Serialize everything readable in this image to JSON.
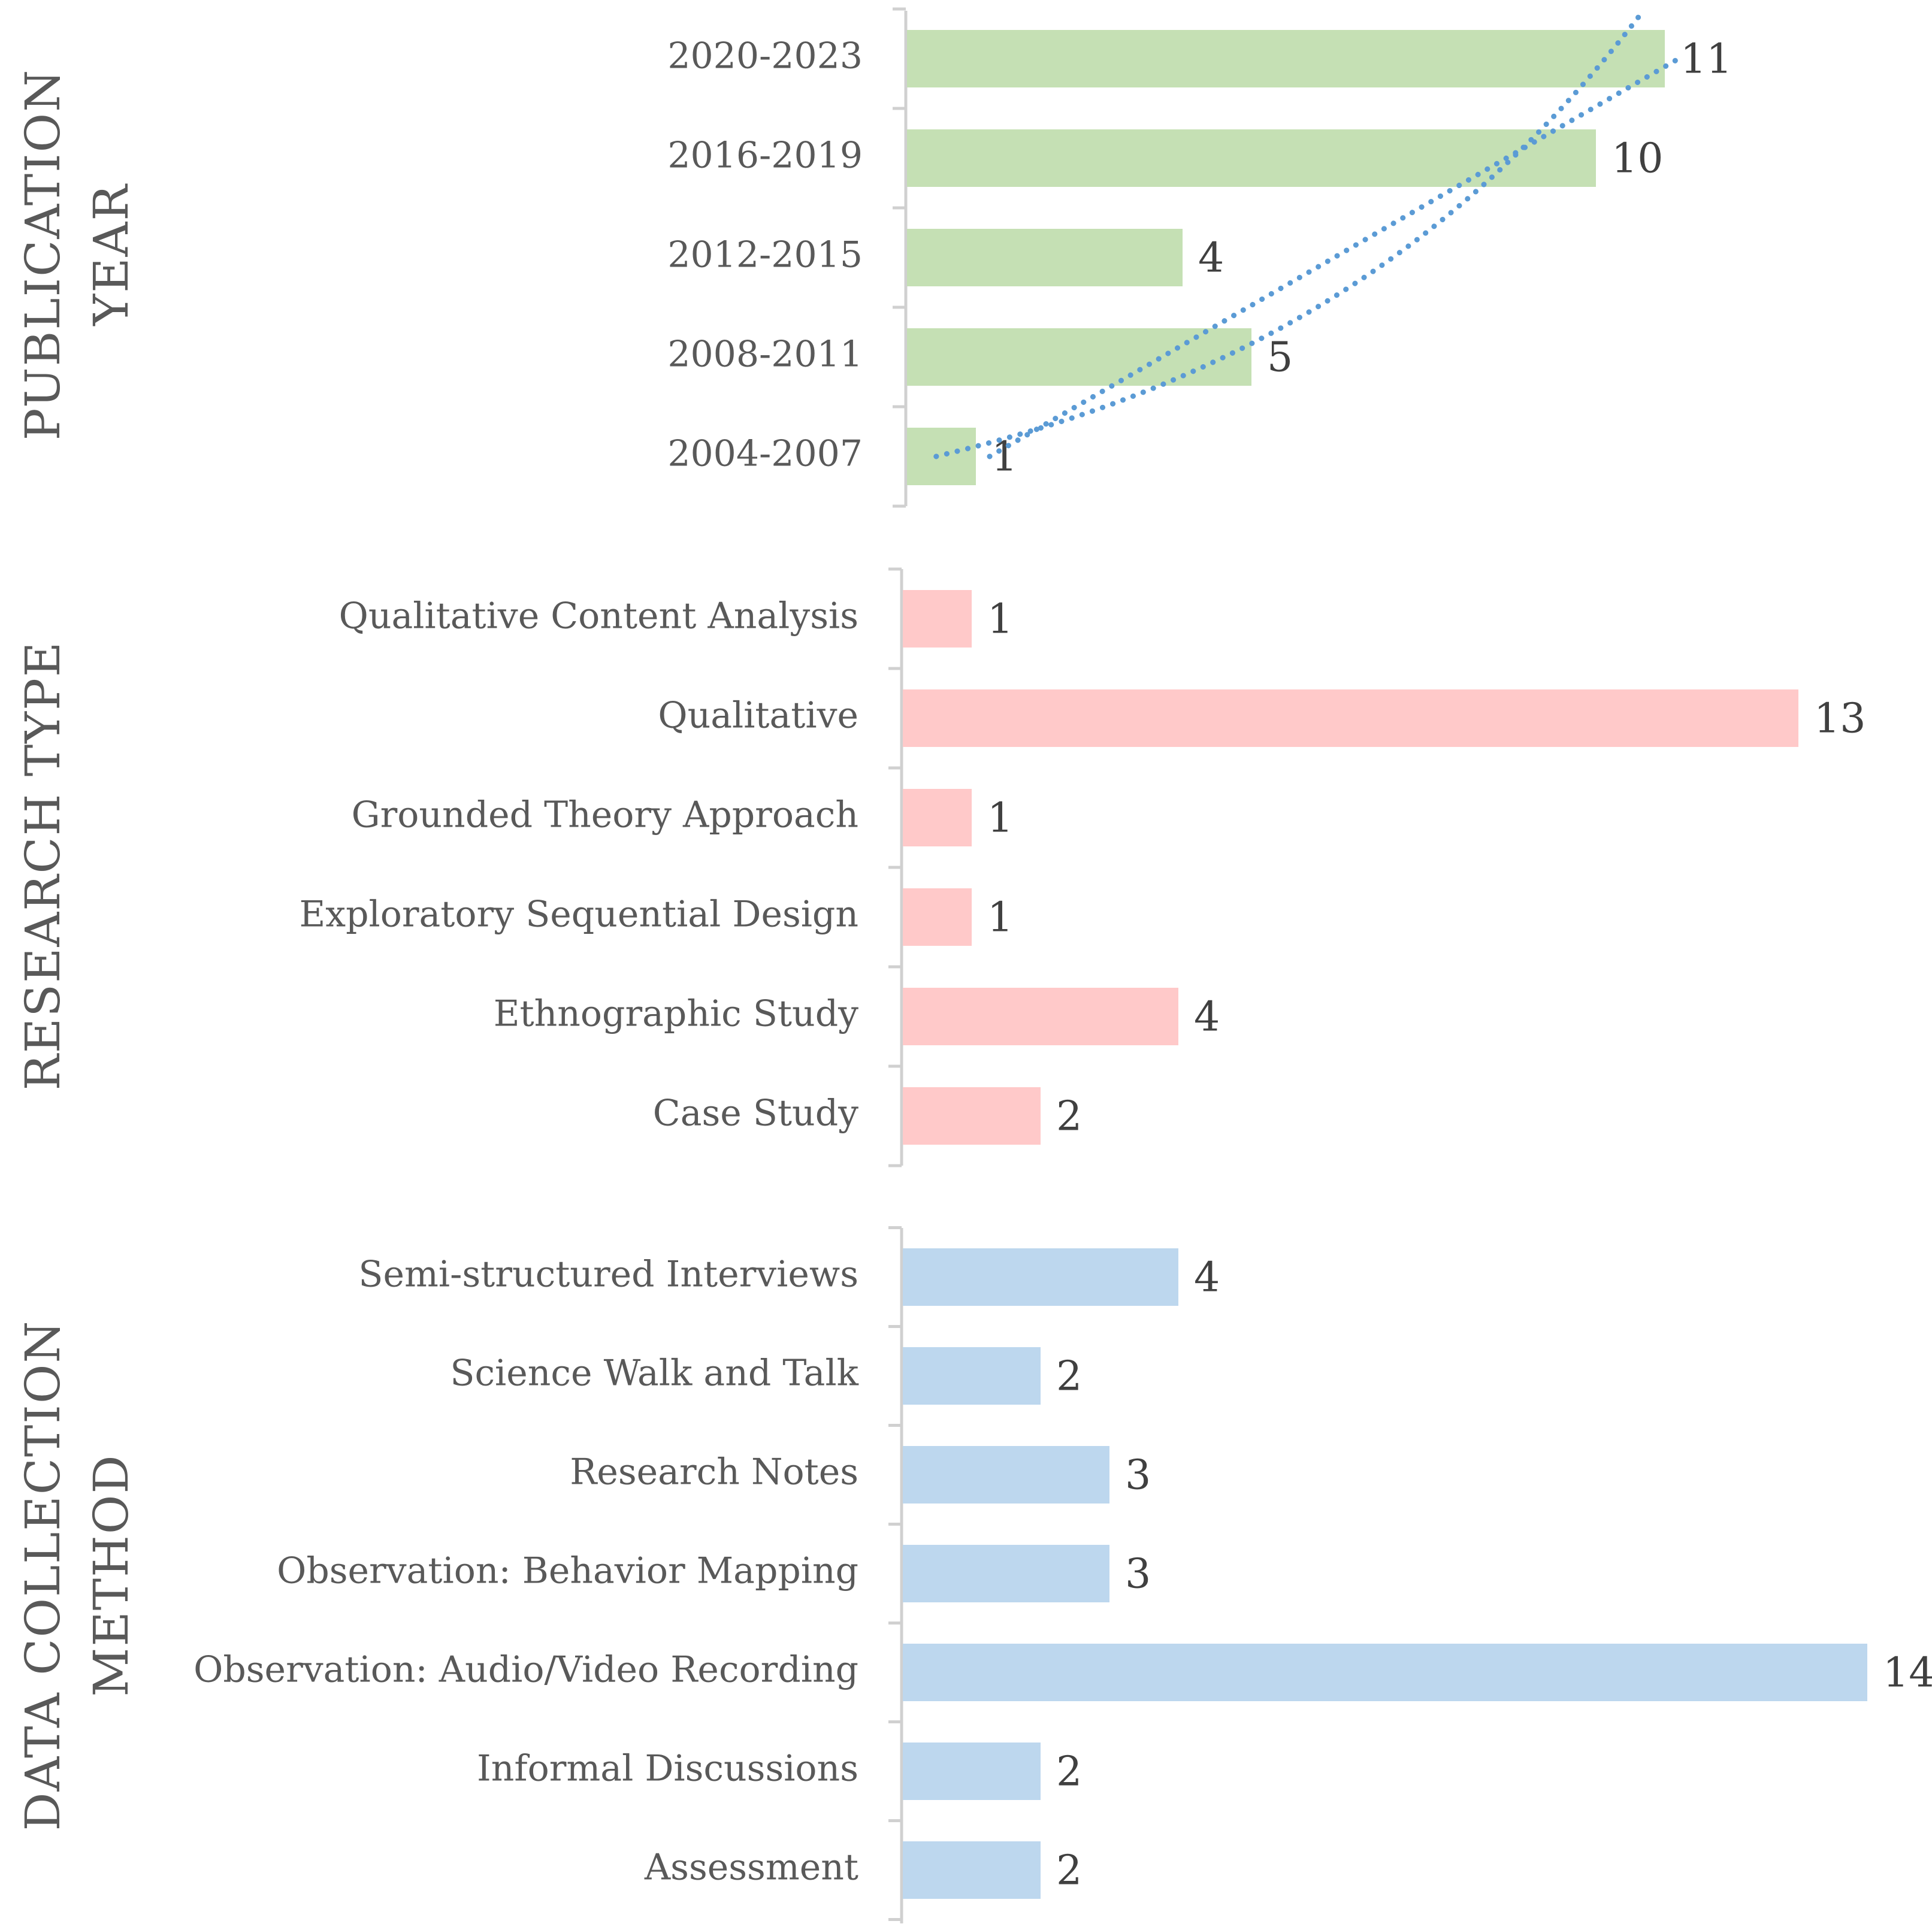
{
  "chart_data": [
    {
      "type": "bar",
      "orientation": "horizontal",
      "title_lines": [
        "PUBLICATION",
        "YEAR"
      ],
      "categories": [
        "2020-2023",
        "2016-2019",
        "2012-2015",
        "2008-2011",
        "2004-2007"
      ],
      "values": [
        11,
        10,
        4,
        5,
        1
      ],
      "value_labels": [
        "11",
        "10",
        "4",
        "5",
        "1"
      ],
      "xlim": [
        0,
        14
      ],
      "bar_color": "#c5e0b4",
      "trendlines": [
        {
          "kind": "linear",
          "style": "dotted",
          "color": "#5b9bd5"
        },
        {
          "kind": "logarithmic",
          "style": "dotted",
          "color": "#5b9bd5"
        }
      ]
    },
    {
      "type": "bar",
      "orientation": "horizontal",
      "title_lines": [
        "RESEARCH  TYPE"
      ],
      "categories": [
        "Qualitative Content Analysis",
        "Qualitative",
        "Grounded Theory Approach",
        "Exploratory Sequential Design",
        "Ethnographic Study",
        "Case Study"
      ],
      "values": [
        1,
        13,
        1,
        1,
        4,
        2
      ],
      "value_labels": [
        "1",
        "13",
        "1",
        "1",
        "4",
        "2"
      ],
      "xlim": [
        0,
        14
      ],
      "bar_color": "#ffc9c9"
    },
    {
      "type": "bar",
      "orientation": "horizontal",
      "title_lines": [
        "DATA  COLLECTION",
        "METHOD"
      ],
      "categories": [
        "Semi-structured Interviews",
        "Science Walk and Talk",
        "Research Notes",
        "Observation: Behavior Mapping",
        "Observation: Audio/Video Recording",
        "Informal Discussions",
        "Assessment"
      ],
      "values": [
        4,
        2,
        3,
        3,
        14,
        2,
        2
      ],
      "value_labels": [
        "4",
        "2",
        "3",
        "3",
        "14",
        "2",
        "2"
      ],
      "xlim": [
        0,
        14
      ],
      "bar_color": "#bdd7ee"
    }
  ]
}
